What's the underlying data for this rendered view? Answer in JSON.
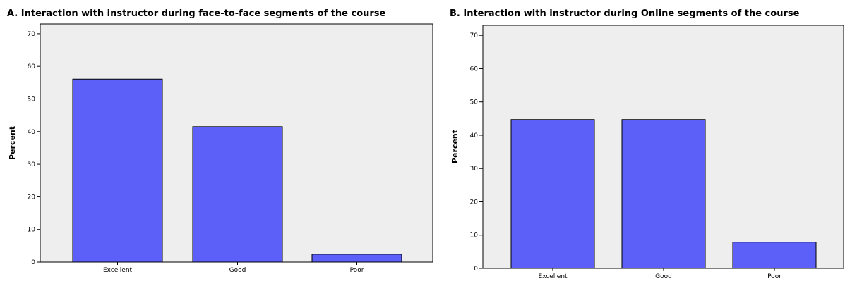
{
  "chart_data": [
    {
      "type": "bar",
      "title": "A. Interaction with instructor during face-to-face segments of the course",
      "xlabel": "",
      "ylabel": "Percent",
      "categories": [
        "Excellent",
        "Good",
        "Poor"
      ],
      "values": [
        56.1,
        41.5,
        2.4
      ],
      "ylim": [
        0,
        73
      ],
      "yticks": [
        0,
        10,
        20,
        30,
        40,
        50,
        60,
        70
      ],
      "grid": false,
      "bar_color": "#5c5ff8",
      "plot_background": "#eeeeee"
    },
    {
      "type": "bar",
      "title": "B. Interaction with instructor during Online segments of the course",
      "xlabel": "",
      "ylabel": "Percent",
      "categories": [
        "Excellent",
        "Good",
        "Poor"
      ],
      "values": [
        44.7,
        44.7,
        7.9
      ],
      "ylim": [
        0,
        73
      ],
      "yticks": [
        0,
        10,
        20,
        30,
        40,
        50,
        60,
        70
      ],
      "grid": false,
      "bar_color": "#5c5ff8",
      "plot_background": "#eeeeee"
    }
  ]
}
